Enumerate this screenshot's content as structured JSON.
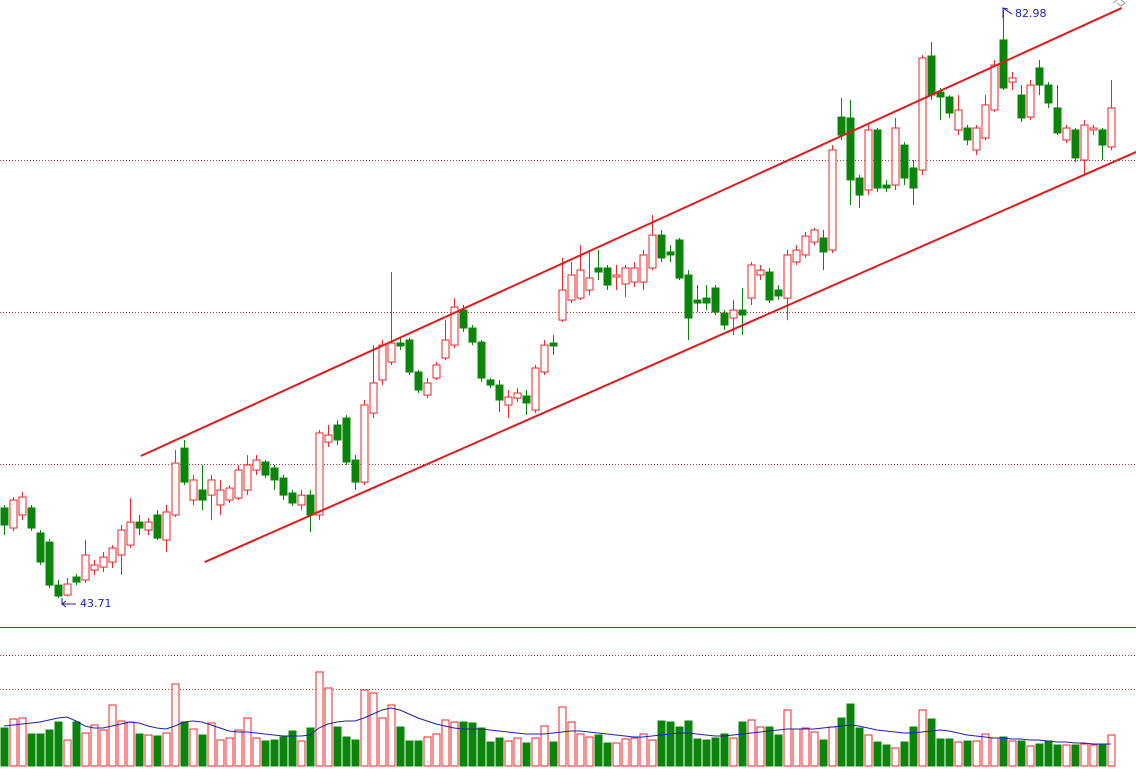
{
  "chart_data": {
    "type": "candlestick",
    "ylim": [
      41.77,
      83.65
    ],
    "grid_lines": [
      72.96,
      62.81,
      52.65
    ],
    "open": [
      49.72,
      48.38,
      49.25,
      49.72,
      48.05,
      47.44,
      44.57,
      43.9,
      45.11,
      44.91,
      45.57,
      45.77,
      46.11,
      46.58,
      47.24,
      48.78,
      48.25,
      49.25,
      47.58,
      49.25,
      53.72,
      50.25,
      50.92,
      50.58,
      49.92,
      50.25,
      50.38,
      50.92,
      52.25,
      52.79,
      52.39,
      51.72,
      50.72,
      49.92,
      50.58,
      49.25,
      54.12,
      55.26,
      55.73,
      52.92,
      51.45,
      56.06,
      58.27,
      59.47,
      60.74,
      60.94,
      58.8,
      57.26,
      58.4,
      59.74,
      60.6,
      62.94,
      61.74,
      60.8,
      58.27,
      57.93,
      56.6,
      57.06,
      57.2,
      56.26,
      58.8,
      60.74,
      62.27,
      63.61,
      63.74,
      64.28,
      65.75,
      65.75,
      65.15,
      64.68,
      64.81,
      64.81,
      65.75,
      67.95,
      66.82,
      67.62,
      65.28,
      63.61,
      63.74,
      64.41,
      62.74,
      62.41,
      62.94,
      63.74,
      65.28,
      65.48,
      64.28,
      63.74,
      66.15,
      66.62,
      67.48,
      67.75,
      66.95,
      75.83,
      75.77,
      71.76,
      70.96,
      74.97,
      71.29,
      71.29,
      73.96,
      72.43,
      72.29,
      79.91,
      77.5,
      77.17,
      74.97,
      75.1,
      73.63,
      74.43,
      76.3,
      80.98,
      78.17,
      77.3,
      75.83,
      79.11,
      77.97,
      76.44,
      74.3,
      74.97,
      72.96,
      74.97,
      74.97,
      73.83
    ],
    "high": [
      49.92,
      50.45,
      50.78,
      49.92,
      48.25,
      47.64,
      44.91,
      45.04,
      45.31,
      47.58,
      46.24,
      46.78,
      47.24,
      48.58,
      50.38,
      49.25,
      49.05,
      49.58,
      49.92,
      53.59,
      54.26,
      51.92,
      52.59,
      51.92,
      51.59,
      51.25,
      52.59,
      53.26,
      53.26,
      52.92,
      52.59,
      51.92,
      50.92,
      50.92,
      50.92,
      54.93,
      55.26,
      55.59,
      55.93,
      53.26,
      56.93,
      60.6,
      60.94,
      65.48,
      61.07,
      61.07,
      58.93,
      58.4,
      59.47,
      62.27,
      63.74,
      63.28,
      61.94,
      60.94,
      58.4,
      58.27,
      57.6,
      57.73,
      57.6,
      59.27,
      60.94,
      61.27,
      66.42,
      66.15,
      67.28,
      66.95,
      66.95,
      65.95,
      65.95,
      65.95,
      66.15,
      66.95,
      69.29,
      68.29,
      67.28,
      67.75,
      65.61,
      64.61,
      64.61,
      64.61,
      62.94,
      63.61,
      64.41,
      66.15,
      65.95,
      65.75,
      64.61,
      66.95,
      67.28,
      68.15,
      68.42,
      68.29,
      73.96,
      77.1,
      76.97,
      71.96,
      75.3,
      75.1,
      71.63,
      75.77,
      74.16,
      72.96,
      79.98,
      80.84,
      77.77,
      77.3,
      77.3,
      75.3,
      75.3,
      77.3,
      79.64,
      82.98,
      78.84,
      77.97,
      78.31,
      79.64,
      78.17,
      77.97,
      75.3,
      75.1,
      75.63,
      75.3,
      75.1,
      78.31
    ],
    "low": [
      47.91,
      48.18,
      48.91,
      48.18,
      45.91,
      44.37,
      43.71,
      43.8,
      44.57,
      44.71,
      45.24,
      45.44,
      45.71,
      45.24,
      47.04,
      47.91,
      47.91,
      47.58,
      46.78,
      49.11,
      51.25,
      49.92,
      49.58,
      48.91,
      49.25,
      50.05,
      50.25,
      50.58,
      51.92,
      51.72,
      50.92,
      50.25,
      49.85,
      49.58,
      48.11,
      48.91,
      53.79,
      53.92,
      52.59,
      50.92,
      51.25,
      55.73,
      57.93,
      59.27,
      60.27,
      58.6,
      57.4,
      57.06,
      58.27,
      59.6,
      60.4,
      61.47,
      60.6,
      58.13,
      57.73,
      56.13,
      55.73,
      56.8,
      55.93,
      56.06,
      58.6,
      59.94,
      62.14,
      63.41,
      63.61,
      63.94,
      64.95,
      64.28,
      64.28,
      63.81,
      64.48,
      64.28,
      65.61,
      66.15,
      66.15,
      64.95,
      60.94,
      62.81,
      62.94,
      62.61,
      61.61,
      61.27,
      61.27,
      63.28,
      64.95,
      63.41,
      63.61,
      62.27,
      65.95,
      66.42,
      67.28,
      65.61,
      66.75,
      74.3,
      69.96,
      69.76,
      70.62,
      70.82,
      70.82,
      70.96,
      71.29,
      69.96,
      71.96,
      76.97,
      75.63,
      75.77,
      74.63,
      73.96,
      73.3,
      74.3,
      76.17,
      77.64,
      77.64,
      75.5,
      75.63,
      77.3,
      76.44,
      74.63,
      74.1,
      72.83,
      71.96,
      74.63,
      72.96,
      73.63
    ],
    "close": [
      48.58,
      50.25,
      50.45,
      48.38,
      46.11,
      44.57,
      43.84,
      44.64,
      44.77,
      46.58,
      45.91,
      46.44,
      47.04,
      48.25,
      48.78,
      48.38,
      48.78,
      47.71,
      49.45,
      52.72,
      51.45,
      51.59,
      50.25,
      51.59,
      50.92,
      51.05,
      52.25,
      52.59,
      52.92,
      51.92,
      51.59,
      50.58,
      50.05,
      50.58,
      49.25,
      54.73,
      54.59,
      54.26,
      52.79,
      51.45,
      56.6,
      58.07,
      60.6,
      60.74,
      60.54,
      58.8,
      57.6,
      58.07,
      59.27,
      60.94,
      63.14,
      61.74,
      60.8,
      58.4,
      57.93,
      56.93,
      57.13,
      57.4,
      56.73,
      59.07,
      60.6,
      60.54,
      64.28,
      65.28,
      65.61,
      65.08,
      65.48,
      64.61,
      65.28,
      65.75,
      65.75,
      66.62,
      67.95,
      66.42,
      66.62,
      65.08,
      62.41,
      63.41,
      63.41,
      62.81,
      61.94,
      62.94,
      62.61,
      65.95,
      65.61,
      63.61,
      63.88,
      66.62,
      66.95,
      67.88,
      68.29,
      66.82,
      73.63,
      74.63,
      71.63,
      70.62,
      74.97,
      71.09,
      71.09,
      75.1,
      71.76,
      71.09,
      79.78,
      77.3,
      77.17,
      76.1,
      76.3,
      74.3,
      75.1,
      76.64,
      79.31,
      77.77,
      78.44,
      75.77,
      77.97,
      77.97,
      76.77,
      74.77,
      75.1,
      73.1,
      75.3,
      75.1,
      73.96,
      76.44
    ],
    "volume": [
      38,
      47,
      48,
      32,
      32,
      36,
      44,
      26,
      44,
      33,
      41,
      36,
      61,
      45,
      44,
      32,
      31,
      30,
      33,
      82,
      44,
      37,
      31,
      43,
      26,
      28,
      36,
      48,
      28,
      25,
      26,
      29,
      35,
      25,
      38,
      94,
      78,
      39,
      29,
      26,
      76,
      73,
      48,
      61,
      39,
      25,
      25,
      29,
      32,
      46,
      44,
      44,
      43,
      38,
      24,
      28,
      25,
      28,
      23,
      28,
      40,
      24,
      59,
      44,
      32,
      29,
      31,
      23,
      23,
      27,
      28,
      32,
      26,
      45,
      44,
      39,
      45,
      27,
      26,
      28,
      32,
      28,
      44,
      46,
      39,
      39,
      31,
      56,
      37,
      38,
      34,
      26,
      39,
      48,
      62,
      38,
      31,
      24,
      21,
      18,
      24,
      39,
      56,
      47,
      27,
      27,
      24,
      25,
      25,
      32,
      28,
      29,
      25,
      25,
      20,
      22,
      25,
      21,
      21,
      21,
      22,
      21,
      22,
      31
    ],
    "volume_ma": [
      40,
      41,
      42,
      43,
      44,
      46,
      48,
      49,
      45,
      40,
      38,
      38,
      40,
      42,
      44,
      43,
      40,
      38,
      37,
      40,
      44,
      45,
      44,
      41,
      38,
      35,
      34,
      34,
      33,
      32,
      31,
      30,
      30,
      30,
      31,
      38,
      42,
      44,
      45,
      45,
      48,
      52,
      56,
      58,
      56,
      52,
      48,
      45,
      42,
      40,
      38,
      37,
      37,
      37,
      36,
      35,
      34,
      33,
      32,
      32,
      32,
      33,
      34,
      35,
      35,
      34,
      33,
      32,
      31,
      30,
      29,
      29,
      30,
      31,
      32,
      33,
      33,
      32,
      31,
      30,
      30,
      31,
      32,
      33,
      34,
      35,
      36,
      37,
      37,
      37,
      37,
      38,
      39,
      40,
      41,
      40,
      38,
      36,
      35,
      34,
      33,
      33,
      34,
      35,
      36,
      35,
      33,
      31,
      30,
      29,
      28,
      28,
      27,
      27,
      26,
      26,
      25,
      24,
      24,
      23,
      23,
      22,
      22,
      22
    ],
    "volume_ylim": [
      0,
      130
    ],
    "volume_grid_lines": [
      111,
      77
    ],
    "channels": [
      {
        "from": {
          "index": 15.2,
          "price": 53.19
        },
        "to": {
          "index": 124.2,
          "price": 83.12
        }
      },
      {
        "from": {
          "index": 22.3,
          "price": 46.11
        },
        "to": {
          "index": 125.8,
          "price": 73.5
        }
      }
    ],
    "annotations": [
      {
        "index": 111,
        "value": 82.98,
        "side": "high"
      },
      {
        "index": 6,
        "value": 43.71,
        "side": "low"
      }
    ],
    "up_color": "#e8262c",
    "down_color": "#0b840b",
    "channel_color": "#e31a1c",
    "ma_color": "#1f1fb0",
    "grid_color": "#b03a3a",
    "annotation_color": "#1f1fb0"
  }
}
